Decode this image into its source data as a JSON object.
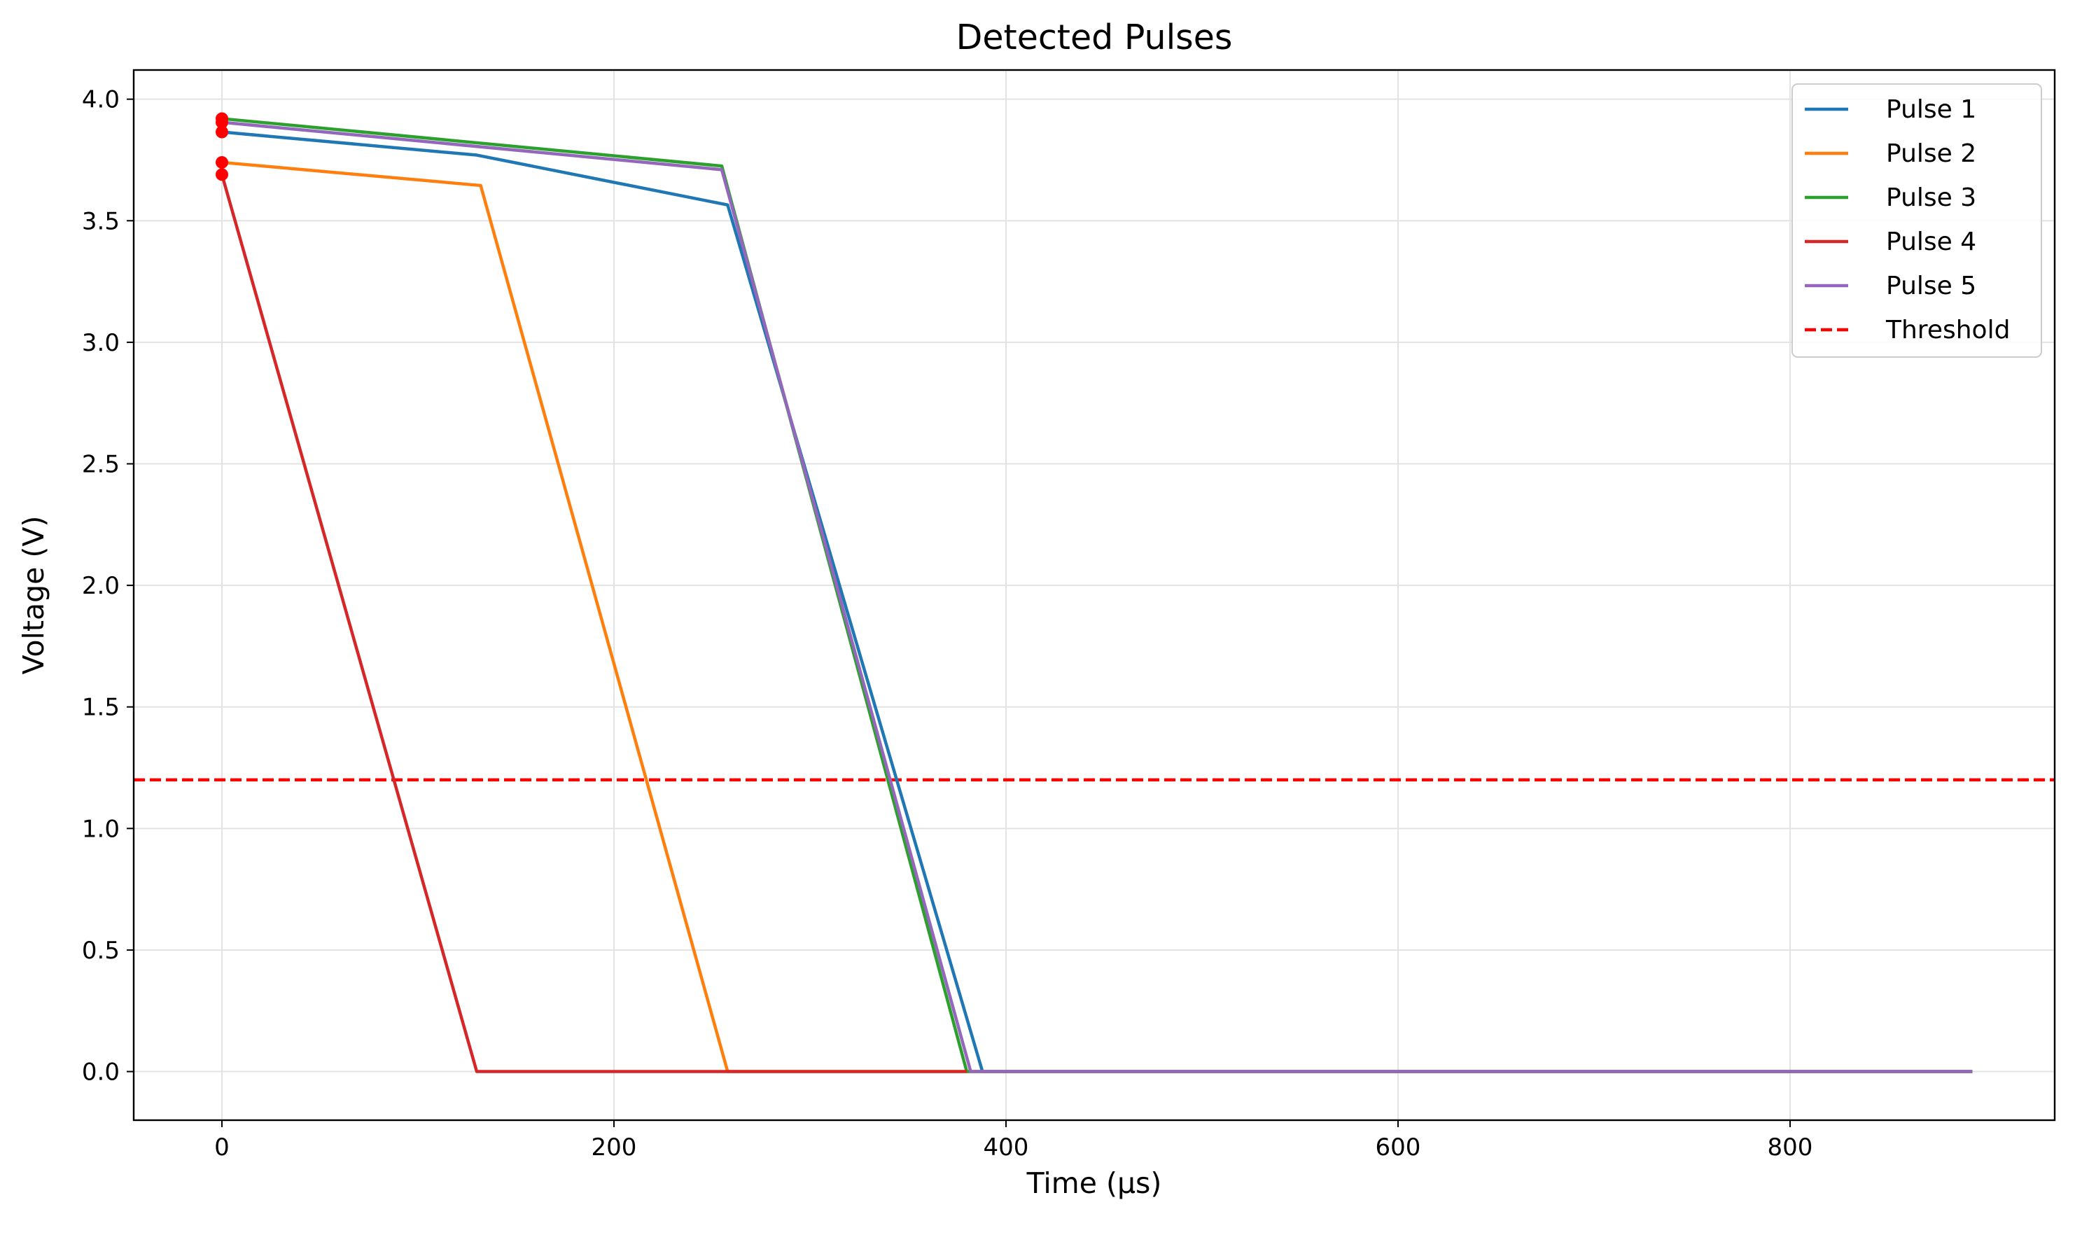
{
  "chart_data": {
    "type": "line",
    "title": "Detected Pulses",
    "xlabel": "Time (µs)",
    "ylabel": "Voltage (V)",
    "xlim": [
      -45,
      935
    ],
    "ylim": [
      -0.2,
      4.12
    ],
    "xticks": [
      0,
      200,
      400,
      600,
      800
    ],
    "yticks": [
      0.0,
      0.5,
      1.0,
      1.5,
      2.0,
      2.5,
      3.0,
      3.5,
      4.0
    ],
    "xtick_labels": [
      "0",
      "200",
      "400",
      "600",
      "800"
    ],
    "ytick_labels": [
      "0.0",
      "0.5",
      "1.0",
      "1.5",
      "2.0",
      "2.5",
      "3.0",
      "3.5",
      "4.0"
    ],
    "grid": true,
    "legend_position": "top-right",
    "series": [
      {
        "name": "Pulse 1",
        "color": "#1f77b4",
        "x": [
          0,
          130,
          258,
          388,
          893
        ],
        "y": [
          3.865,
          3.77,
          3.565,
          0.0,
          0.0
        ]
      },
      {
        "name": "Pulse 2",
        "color": "#ff7f0e",
        "x": [
          0,
          132,
          258,
          388,
          893
        ],
        "y": [
          3.74,
          3.645,
          0.0,
          0.0,
          0.0
        ]
      },
      {
        "name": "Pulse 3",
        "color": "#2ca02c",
        "x": [
          0,
          255,
          380,
          893
        ],
        "y": [
          3.92,
          3.725,
          0.0,
          0.0
        ]
      },
      {
        "name": "Pulse 4",
        "color": "#d62728",
        "x": [
          0,
          130,
          380
        ],
        "y": [
          3.69,
          0.0,
          0.0
        ]
      },
      {
        "name": "Pulse 5",
        "color": "#9467bd",
        "x": [
          0,
          255,
          382,
          893
        ],
        "y": [
          3.905,
          3.71,
          0.0,
          0.0
        ]
      }
    ],
    "threshold": {
      "name": "Threshold",
      "color": "#ff0000",
      "value": 1.2
    },
    "peak_markers": {
      "color": "#ff0000",
      "x": [
        0,
        0,
        0,
        0,
        0
      ],
      "y": [
        3.865,
        3.74,
        3.92,
        3.69,
        3.905
      ]
    }
  }
}
